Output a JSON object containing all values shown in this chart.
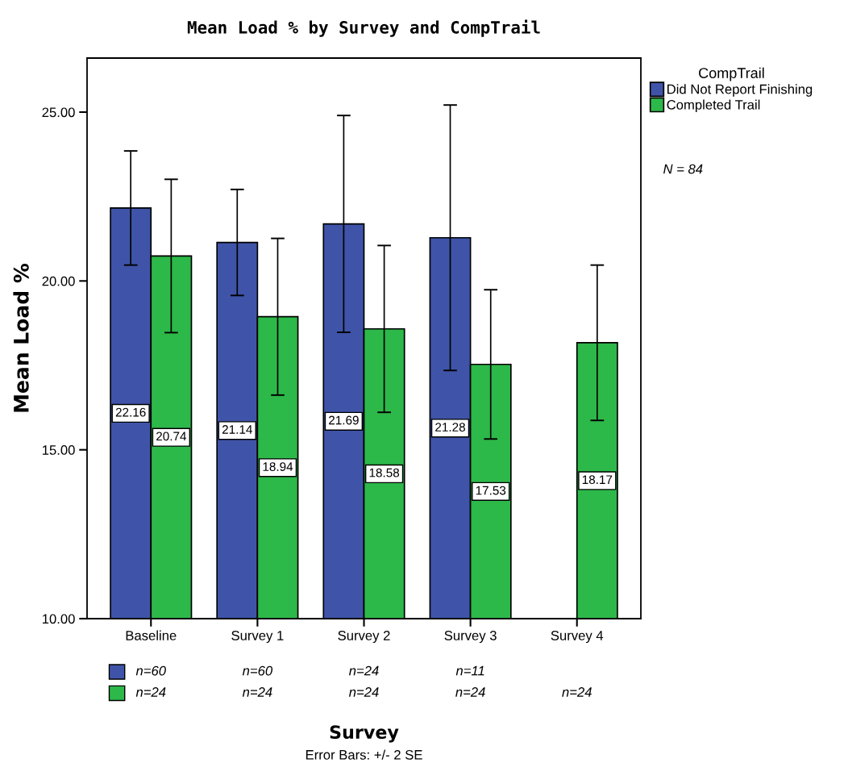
{
  "chart_data": {
    "type": "bar",
    "title": "Mean Load % by Survey and CompTrail",
    "xlabel": "Survey",
    "ylabel": "Mean Load %",
    "legend_title": "CompTrail",
    "categories": [
      "Baseline",
      "Survey 1",
      "Survey 2",
      "Survey 3",
      "Survey 4"
    ],
    "series": [
      {
        "name": "Did Not Report Finishing",
        "color": "#3f54a8",
        "values": [
          22.16,
          21.14,
          21.69,
          21.28,
          null
        ],
        "errors": [
          1.69,
          1.57,
          3.21,
          3.93,
          null
        ]
      },
      {
        "name": "Completed Trail",
        "color": "#2db84a",
        "values": [
          20.74,
          18.94,
          18.58,
          17.53,
          18.17
        ],
        "errors": [
          2.27,
          2.32,
          2.47,
          2.21,
          2.3
        ]
      }
    ],
    "ylim": [
      10,
      26.6
    ],
    "yticks": [
      {
        "value": 10,
        "label": "10.00"
      },
      {
        "value": 15,
        "label": "15.00"
      },
      {
        "value": 20,
        "label": "20.00"
      },
      {
        "value": 25,
        "label": "25.00"
      }
    ],
    "data_labels": true,
    "legend": "top right",
    "grid": false,
    "annotations": [
      "N = 84",
      "n=60",
      "n=60",
      "n=24",
      "n=11",
      "n=24",
      "n=24",
      "n=24",
      "n=24",
      "n=24",
      "Error Bars: +/- 2 SE"
    ]
  }
}
